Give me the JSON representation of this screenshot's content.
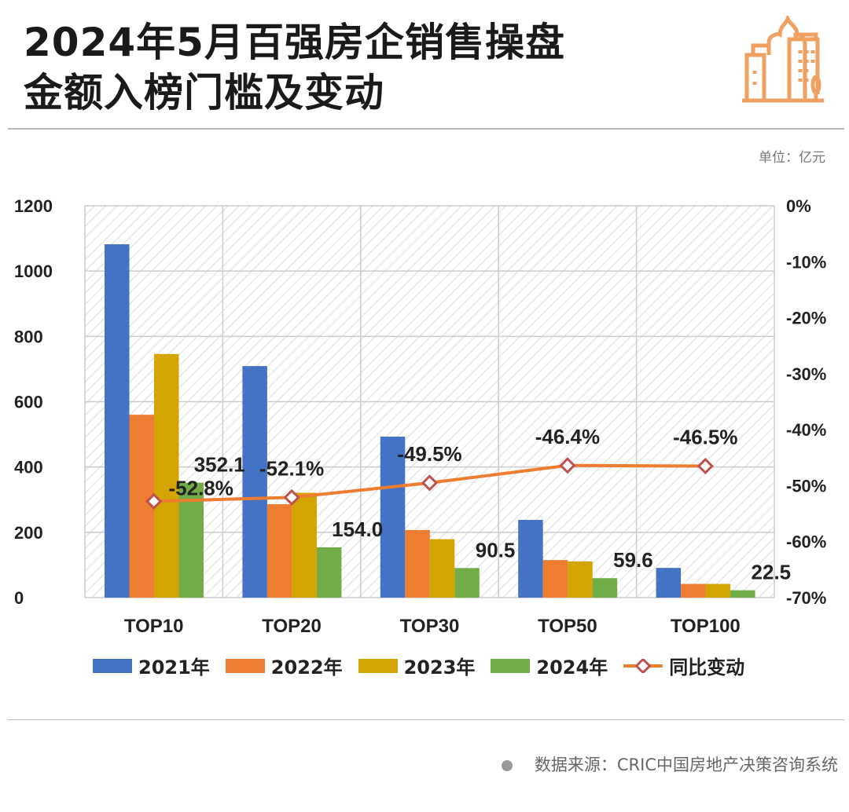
{
  "title_lines": [
    "2024年5月百强房企销售操盘",
    "金额入榜门槛及变动"
  ],
  "unit": "单位：亿元",
  "source": "数据来源：CRIC中国房地产决策咨询系统",
  "colors": {
    "2021年": "#4472c4",
    "2022年": "#ed7d31",
    "2023年": "#d4a400",
    "2024年": "#70ad47",
    "line": "#ed7d31",
    "marker": "#c0504d",
    "logo": "#f0a060"
  },
  "logo_icon": "city-buildings-icon",
  "chart_data": {
    "type": "bar+line",
    "categories": [
      "TOP10",
      "TOP20",
      "TOP30",
      "TOP50",
      "TOP100"
    ],
    "series": [
      {
        "name": "2021年",
        "values": [
          1082,
          709,
          493,
          238,
          91
        ]
      },
      {
        "name": "2022年",
        "values": [
          560,
          286,
          207,
          115,
          42
        ]
      },
      {
        "name": "2023年",
        "values": [
          746,
          321,
          179,
          111,
          42
        ]
      },
      {
        "name": "2024年",
        "values": [
          352.1,
          154.0,
          90.5,
          59.6,
          22.5
        ],
        "labels": [
          "352.1",
          "154.0",
          "90.5",
          "59.6",
          "22.5"
        ]
      }
    ],
    "line": {
      "name": "同比变动",
      "values": [
        -52.8,
        -52.1,
        -49.5,
        -46.4,
        -46.5
      ],
      "labels": [
        "-52.8%",
        "-52.1%",
        "-49.5%",
        "-46.4%",
        "-46.5%"
      ],
      "axis": "right"
    },
    "ylim": [
      0,
      1200
    ],
    "yticks": [
      "0",
      "200",
      "400",
      "600",
      "800",
      "1000",
      "1200"
    ],
    "y2lim": [
      -70,
      0
    ],
    "y2ticks": [
      "0%",
      "-10%",
      "-20%",
      "-30%",
      "-40%",
      "-50%",
      "-60%",
      "-70%"
    ],
    "grid": true,
    "legend": "bottom"
  }
}
